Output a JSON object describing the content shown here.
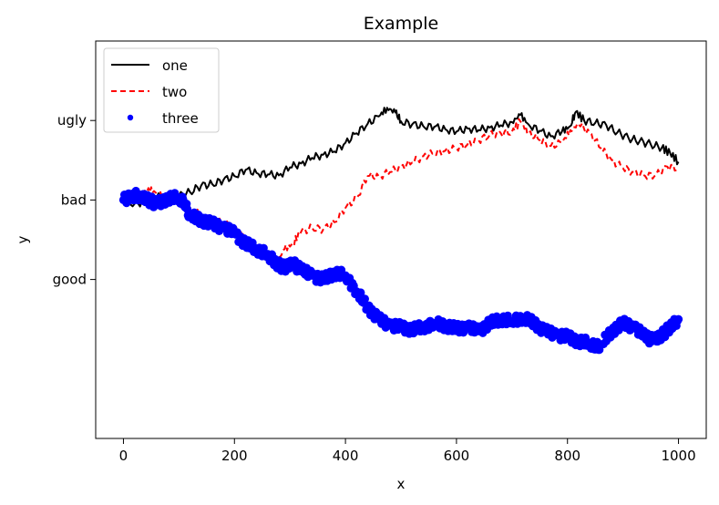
{
  "chart_data": {
    "type": "line",
    "title": "Example",
    "xlabel": "x",
    "ylabel": "y",
    "xlim": [
      -50,
      1050
    ],
    "ylim": [
      -3.0,
      2.0
    ],
    "x_ticks": [
      {
        "value": 0,
        "label": "0"
      },
      {
        "value": 200,
        "label": "200"
      },
      {
        "value": 400,
        "label": "400"
      },
      {
        "value": 600,
        "label": "600"
      },
      {
        "value": 800,
        "label": "800"
      },
      {
        "value": 1000,
        "label": "1000"
      }
    ],
    "y_ticks": [
      {
        "value": 1,
        "label": "ugly"
      },
      {
        "value": 0,
        "label": "bad"
      },
      {
        "value": -1,
        "label": "good"
      }
    ],
    "grid": false,
    "legend_position": "top-left",
    "series": [
      {
        "name": "one",
        "style": "solid-line",
        "color": "#000000",
        "points": [
          [
            0,
            0.0
          ],
          [
            20,
            -0.05
          ],
          [
            40,
            -0.02
          ],
          [
            60,
            0.04
          ],
          [
            80,
            0.02
          ],
          [
            100,
            0.05
          ],
          [
            120,
            0.1
          ],
          [
            140,
            0.18
          ],
          [
            160,
            0.2
          ],
          [
            180,
            0.25
          ],
          [
            200,
            0.3
          ],
          [
            220,
            0.38
          ],
          [
            240,
            0.34
          ],
          [
            260,
            0.32
          ],
          [
            280,
            0.31
          ],
          [
            300,
            0.41
          ],
          [
            320,
            0.46
          ],
          [
            340,
            0.53
          ],
          [
            360,
            0.57
          ],
          [
            380,
            0.61
          ],
          [
            400,
            0.72
          ],
          [
            420,
            0.84
          ],
          [
            440,
            0.96
          ],
          [
            460,
            1.05
          ],
          [
            475,
            1.16
          ],
          [
            490,
            1.1
          ],
          [
            500,
            0.99
          ],
          [
            520,
            0.95
          ],
          [
            540,
            0.93
          ],
          [
            560,
            0.92
          ],
          [
            580,
            0.89
          ],
          [
            600,
            0.86
          ],
          [
            620,
            0.9
          ],
          [
            640,
            0.88
          ],
          [
            660,
            0.91
          ],
          [
            680,
            0.94
          ],
          [
            700,
            0.98
          ],
          [
            715,
            1.07
          ],
          [
            730,
            0.95
          ],
          [
            750,
            0.87
          ],
          [
            770,
            0.8
          ],
          [
            790,
            0.86
          ],
          [
            805,
            0.93
          ],
          [
            815,
            1.11
          ],
          [
            830,
            1.0
          ],
          [
            850,
            0.97
          ],
          [
            870,
            0.94
          ],
          [
            890,
            0.85
          ],
          [
            910,
            0.78
          ],
          [
            930,
            0.74
          ],
          [
            950,
            0.7
          ],
          [
            970,
            0.66
          ],
          [
            985,
            0.59
          ],
          [
            1000,
            0.48
          ]
        ]
      },
      {
        "name": "two",
        "style": "dashed-line",
        "color": "#ff0000",
        "points": [
          [
            0,
            0.0
          ],
          [
            15,
            0.03
          ],
          [
            30,
            0.05
          ],
          [
            45,
            0.15
          ],
          [
            60,
            0.08
          ],
          [
            80,
            0.0
          ],
          [
            100,
            0.0
          ],
          [
            120,
            -0.1
          ],
          [
            140,
            -0.2
          ],
          [
            160,
            -0.25
          ],
          [
            180,
            -0.3
          ],
          [
            200,
            -0.35
          ],
          [
            220,
            -0.48
          ],
          [
            240,
            -0.6
          ],
          [
            260,
            -0.68
          ],
          [
            275,
            -0.8
          ],
          [
            290,
            -0.62
          ],
          [
            305,
            -0.55
          ],
          [
            320,
            -0.4
          ],
          [
            340,
            -0.35
          ],
          [
            360,
            -0.37
          ],
          [
            380,
            -0.28
          ],
          [
            400,
            -0.1
          ],
          [
            420,
            0.02
          ],
          [
            440,
            0.3
          ],
          [
            460,
            0.3
          ],
          [
            480,
            0.35
          ],
          [
            500,
            0.42
          ],
          [
            520,
            0.47
          ],
          [
            540,
            0.55
          ],
          [
            560,
            0.59
          ],
          [
            580,
            0.62
          ],
          [
            600,
            0.65
          ],
          [
            620,
            0.7
          ],
          [
            640,
            0.75
          ],
          [
            660,
            0.82
          ],
          [
            680,
            0.84
          ],
          [
            700,
            0.86
          ],
          [
            715,
            0.99
          ],
          [
            730,
            0.85
          ],
          [
            750,
            0.75
          ],
          [
            770,
            0.68
          ],
          [
            790,
            0.72
          ],
          [
            805,
            0.88
          ],
          [
            820,
            0.95
          ],
          [
            840,
            0.85
          ],
          [
            860,
            0.65
          ],
          [
            880,
            0.5
          ],
          [
            900,
            0.4
          ],
          [
            920,
            0.35
          ],
          [
            940,
            0.3
          ],
          [
            960,
            0.32
          ],
          [
            980,
            0.42
          ],
          [
            1000,
            0.4
          ]
        ]
      },
      {
        "name": "three",
        "style": "dots",
        "color": "#0000ff",
        "points": [
          [
            0,
            0.0
          ],
          [
            15,
            0.05
          ],
          [
            30,
            0.06
          ],
          [
            45,
            0.0
          ],
          [
            60,
            -0.05
          ],
          [
            80,
            0.02
          ],
          [
            100,
            0.03
          ],
          [
            110,
            -0.05
          ],
          [
            120,
            -0.2
          ],
          [
            140,
            -0.25
          ],
          [
            160,
            -0.3
          ],
          [
            180,
            -0.35
          ],
          [
            200,
            -0.42
          ],
          [
            220,
            -0.55
          ],
          [
            240,
            -0.62
          ],
          [
            260,
            -0.68
          ],
          [
            275,
            -0.8
          ],
          [
            290,
            -0.85
          ],
          [
            305,
            -0.8
          ],
          [
            320,
            -0.88
          ],
          [
            340,
            -0.95
          ],
          [
            360,
            -1.0
          ],
          [
            380,
            -0.92
          ],
          [
            400,
            -0.95
          ],
          [
            420,
            -1.15
          ],
          [
            440,
            -1.35
          ],
          [
            460,
            -1.5
          ],
          [
            480,
            -1.58
          ],
          [
            500,
            -1.6
          ],
          [
            520,
            -1.63
          ],
          [
            540,
            -1.6
          ],
          [
            560,
            -1.55
          ],
          [
            580,
            -1.58
          ],
          [
            600,
            -1.62
          ],
          [
            620,
            -1.6
          ],
          [
            640,
            -1.65
          ],
          [
            660,
            -1.55
          ],
          [
            680,
            -1.5
          ],
          [
            700,
            -1.52
          ],
          [
            720,
            -1.48
          ],
          [
            740,
            -1.55
          ],
          [
            760,
            -1.65
          ],
          [
            780,
            -1.7
          ],
          [
            800,
            -1.72
          ],
          [
            820,
            -1.78
          ],
          [
            840,
            -1.8
          ],
          [
            850,
            -1.86
          ],
          [
            860,
            -1.82
          ],
          [
            880,
            -1.65
          ],
          [
            900,
            -1.55
          ],
          [
            920,
            -1.6
          ],
          [
            940,
            -1.72
          ],
          [
            955,
            -1.77
          ],
          [
            970,
            -1.7
          ],
          [
            985,
            -1.6
          ],
          [
            1000,
            -1.5
          ]
        ]
      }
    ]
  }
}
